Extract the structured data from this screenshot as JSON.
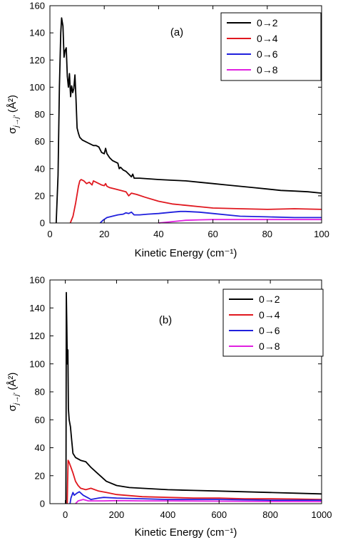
{
  "chart_data": [
    {
      "type": "line",
      "panel_label": "(a)",
      "xlabel": "Kinetic Energy (cm⁻¹)",
      "ylabel": "σ",
      "ylabel_sub": "j→j'",
      "ylabel_unit": " (Å²)",
      "xlim": [
        0,
        100
      ],
      "ylim": [
        0,
        160
      ],
      "xticks": [
        0,
        20,
        40,
        60,
        80,
        100
      ],
      "yticks": [
        0,
        20,
        40,
        60,
        80,
        100,
        120,
        140,
        160
      ],
      "xtick_labels": [
        "0",
        "20",
        "40",
        "60",
        "80",
        "100"
      ],
      "ytick_labels": [
        "0",
        "20",
        "40",
        "60",
        "80",
        "100",
        "120",
        "140",
        "160"
      ],
      "legend_position": "top-right",
      "grid": false,
      "series": [
        {
          "name": "0→2",
          "color": "#000000",
          "points": [
            [
              2.3,
              0
            ],
            [
              3,
              35
            ],
            [
              3.5,
              100
            ],
            [
              4,
              140
            ],
            [
              4.3,
              151
            ],
            [
              4.8,
              145
            ],
            [
              5.2,
              122
            ],
            [
              5.6,
              127
            ],
            [
              6,
              129
            ],
            [
              6.4,
              108
            ],
            [
              6.8,
              100
            ],
            [
              7.2,
              110
            ],
            [
              7.6,
              93
            ],
            [
              8,
              101
            ],
            [
              8.4,
              96
            ],
            [
              8.8,
              99
            ],
            [
              9.2,
              109
            ],
            [
              9.6,
              91
            ],
            [
              10,
              70
            ],
            [
              10.5,
              66
            ],
            [
              11,
              63
            ],
            [
              12,
              61
            ],
            [
              13,
              60
            ],
            [
              14,
              59
            ],
            [
              15,
              58
            ],
            [
              16,
              57
            ],
            [
              17,
              57
            ],
            [
              18,
              56
            ],
            [
              19,
              52
            ],
            [
              20,
              51
            ],
            [
              20.5,
              55
            ],
            [
              21,
              51
            ],
            [
              22,
              48
            ],
            [
              23,
              46
            ],
            [
              24,
              45
            ],
            [
              25,
              44
            ],
            [
              25.5,
              40
            ],
            [
              26,
              41
            ],
            [
              27,
              39
            ],
            [
              28,
              38
            ],
            [
              29,
              36
            ],
            [
              30,
              34
            ],
            [
              30.5,
              36
            ],
            [
              31,
              33
            ],
            [
              33,
              33
            ],
            [
              40,
              32
            ],
            [
              45,
              31.5
            ],
            [
              50,
              31
            ],
            [
              55,
              30
            ],
            [
              60,
              29
            ],
            [
              65,
              28
            ],
            [
              70,
              27
            ],
            [
              75,
              26
            ],
            [
              80,
              25
            ],
            [
              85,
              24
            ],
            [
              90,
              23.5
            ],
            [
              95,
              23
            ],
            [
              100,
              22
            ]
          ]
        },
        {
          "name": "0→4",
          "color": "#e0181f",
          "points": [
            [
              7.5,
              0
            ],
            [
              8.5,
              5
            ],
            [
              9.5,
              15
            ],
            [
              10.5,
              27
            ],
            [
              11,
              31
            ],
            [
              11.5,
              32
            ],
            [
              12.5,
              31
            ],
            [
              13.5,
              29
            ],
            [
              14.5,
              30
            ],
            [
              15.5,
              28
            ],
            [
              16,
              31
            ],
            [
              17,
              30
            ],
            [
              18,
              29
            ],
            [
              19,
              28
            ],
            [
              20,
              27.5
            ],
            [
              20.5,
              29
            ],
            [
              21,
              27
            ],
            [
              22,
              26
            ],
            [
              24,
              25
            ],
            [
              26,
              24
            ],
            [
              28,
              23
            ],
            [
              29,
              20
            ],
            [
              30,
              22
            ],
            [
              32,
              21
            ],
            [
              35,
              19
            ],
            [
              40,
              16
            ],
            [
              45,
              14
            ],
            [
              50,
              13
            ],
            [
              55,
              12
            ],
            [
              60,
              11
            ],
            [
              70,
              10.5
            ],
            [
              80,
              10
            ],
            [
              90,
              10.5
            ],
            [
              100,
              10
            ]
          ]
        },
        {
          "name": "0→6",
          "color": "#2020dd",
          "points": [
            [
              18.5,
              0
            ],
            [
              19.5,
              2
            ],
            [
              21,
              4
            ],
            [
              23,
              5
            ],
            [
              25,
              6
            ],
            [
              27,
              6.5
            ],
            [
              28,
              7.5
            ],
            [
              29,
              7
            ],
            [
              30,
              8
            ],
            [
              31,
              6
            ],
            [
              33,
              6
            ],
            [
              36,
              6.5
            ],
            [
              40,
              7
            ],
            [
              45,
              8
            ],
            [
              48,
              8.5
            ],
            [
              50,
              8.5
            ],
            [
              55,
              8
            ],
            [
              60,
              7
            ],
            [
              70,
              5
            ],
            [
              80,
              4.5
            ],
            [
              90,
              4
            ],
            [
              100,
              4
            ]
          ]
        },
        {
          "name": "0→8",
          "color": "#e020e0",
          "points": [
            [
              40,
              0
            ],
            [
              45,
              1
            ],
            [
              50,
              2
            ],
            [
              55,
              2.3
            ],
            [
              60,
              2.5
            ],
            [
              70,
              2.5
            ],
            [
              80,
              2.5
            ],
            [
              90,
              2.5
            ],
            [
              100,
              2.5
            ]
          ]
        }
      ]
    },
    {
      "type": "line",
      "panel_label": "(b)",
      "xlabel": "Kinetic Energy (cm⁻¹)",
      "ylabel": "σ",
      "ylabel_sub": "j→j'",
      "ylabel_unit": " (Å²)",
      "xlim": [
        -60,
        1000
      ],
      "ylim": [
        0,
        160
      ],
      "xticks": [
        0,
        200,
        400,
        600,
        800,
        1000
      ],
      "yticks": [
        0,
        20,
        40,
        60,
        80,
        100,
        120,
        140,
        160
      ],
      "xtick_labels": [
        "0",
        "200",
        "400",
        "600",
        "800",
        "1000"
      ],
      "ytick_labels": [
        "0",
        "20",
        "40",
        "60",
        "80",
        "100",
        "120",
        "140",
        "160"
      ],
      "legend_position": "top-right",
      "grid": false,
      "series": [
        {
          "name": "0→2",
          "color": "#000000",
          "points": [
            [
              2.3,
              0
            ],
            [
              3,
              30
            ],
            [
              4,
              151
            ],
            [
              6,
              128
            ],
            [
              8,
              100
            ],
            [
              10,
              110
            ],
            [
              12,
              68
            ],
            [
              15,
              60
            ],
            [
              20,
              55
            ],
            [
              25,
              45
            ],
            [
              30,
              36
            ],
            [
              40,
              33
            ],
            [
              60,
              31
            ],
            [
              80,
              30
            ],
            [
              100,
              26
            ],
            [
              130,
              21
            ],
            [
              160,
              16
            ],
            [
              200,
              13
            ],
            [
              250,
              11.5
            ],
            [
              300,
              11
            ],
            [
              400,
              10
            ],
            [
              500,
              9.5
            ],
            [
              600,
              9
            ],
            [
              700,
              8.5
            ],
            [
              800,
              8
            ],
            [
              900,
              7.5
            ],
            [
              1000,
              7
            ]
          ]
        },
        {
          "name": "0→4",
          "color": "#e0181f",
          "points": [
            [
              7.5,
              0
            ],
            [
              9,
              15
            ],
            [
              11,
              31
            ],
            [
              14,
              30
            ],
            [
              18,
              28
            ],
            [
              22,
              26
            ],
            [
              30,
              22
            ],
            [
              40,
              16
            ],
            [
              50,
              13
            ],
            [
              60,
              11
            ],
            [
              80,
              10
            ],
            [
              100,
              11
            ],
            [
              130,
              9
            ],
            [
              160,
              8
            ],
            [
              200,
              6.5
            ],
            [
              300,
              5
            ],
            [
              400,
              4.5
            ],
            [
              500,
              4
            ],
            [
              600,
              4
            ],
            [
              700,
              3.5
            ],
            [
              800,
              3.5
            ],
            [
              900,
              3.3
            ],
            [
              1000,
              3
            ]
          ]
        },
        {
          "name": "0→6",
          "color": "#2020dd",
          "points": [
            [
              18.5,
              0
            ],
            [
              22,
              4
            ],
            [
              26,
              6
            ],
            [
              30,
              8
            ],
            [
              35,
              6
            ],
            [
              45,
              7.5
            ],
            [
              55,
              8.5
            ],
            [
              70,
              6
            ],
            [
              90,
              4
            ],
            [
              100,
              3
            ],
            [
              130,
              4
            ],
            [
              150,
              4.5
            ],
            [
              200,
              4
            ],
            [
              300,
              3.5
            ],
            [
              400,
              3
            ],
            [
              600,
              3
            ],
            [
              800,
              2.5
            ],
            [
              1000,
              2.5
            ]
          ]
        },
        {
          "name": "0→8",
          "color": "#e020e0",
          "points": [
            [
              40,
              0
            ],
            [
              50,
              2
            ],
            [
              70,
              3
            ],
            [
              90,
              2
            ],
            [
              150,
              2
            ],
            [
              200,
              2.2
            ],
            [
              300,
              2
            ],
            [
              400,
              2
            ],
            [
              600,
              1.8
            ],
            [
              800,
              1.6
            ],
            [
              1000,
              1.5
            ]
          ]
        }
      ]
    }
  ]
}
